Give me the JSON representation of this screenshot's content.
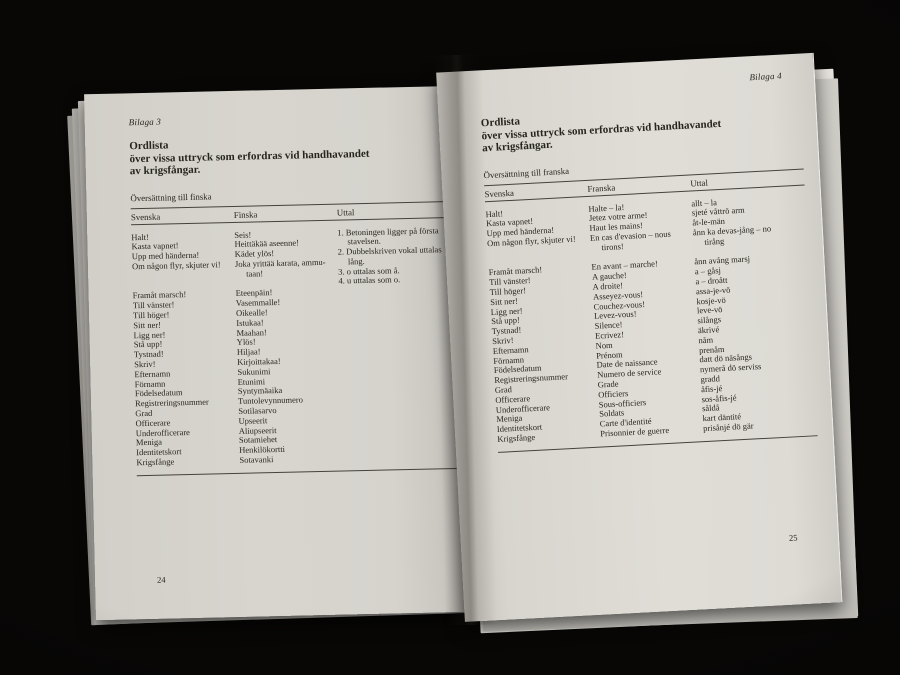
{
  "colors": {
    "background": "#080706",
    "paper": "#dedbd5",
    "ink": "#27251f"
  },
  "left_page": {
    "annex": "Bilaga 3",
    "title_line1": "Ordlista",
    "title_line2": "över vissa uttryck som erfordras vid handhavandet",
    "title_line3": "av krigsfångar.",
    "table_caption": "Översättning till finska",
    "columns": [
      "Svenska",
      "Finska",
      "Uttal"
    ],
    "rows_top": [
      {
        "sv": "Halt!",
        "fi": "Seis!"
      },
      {
        "sv": "Kasta vapnet!",
        "fi": "Heittäkää aseenne!"
      },
      {
        "sv": "Upp med händerna!",
        "fi": "Kädet ylös!"
      },
      {
        "sv": "Om någon flyr, skjuter vi!",
        "fi": "Joka yrittää karata, ammu-taan!"
      }
    ],
    "rows_main": [
      {
        "sv": "Framåt marsch!",
        "fi": "Eteenpäin!"
      },
      {
        "sv": "Till vänster!",
        "fi": "Vasemmalle!"
      },
      {
        "sv": "Till höger!",
        "fi": "Oikealle!"
      },
      {
        "sv": "Sitt ner!",
        "fi": "Istukaa!"
      },
      {
        "sv": "Ligg ner!",
        "fi": "Maahan!"
      },
      {
        "sv": "Stå upp!",
        "fi": "Ylös!"
      },
      {
        "sv": "Tystnad!",
        "fi": "Hiljaa!"
      },
      {
        "sv": "Skriv!",
        "fi": "Kirjoittakaa!"
      },
      {
        "sv": "Efternamn",
        "fi": "Sukunimi"
      },
      {
        "sv": "Förnamn",
        "fi": "Etunimi"
      },
      {
        "sv": "Födelsedatum",
        "fi": "Syntymäaika"
      },
      {
        "sv": "Registreringsnummer",
        "fi": "Tuntolevynnumero"
      },
      {
        "sv": "Grad",
        "fi": "Sotilasarvo"
      },
      {
        "sv": "Officerare",
        "fi": "Upseerit"
      },
      {
        "sv": "Underofficerare",
        "fi": "Aliupseerit"
      },
      {
        "sv": "Meniga",
        "fi": "Sotamiehet"
      },
      {
        "sv": "Identitetskort",
        "fi": "Henkilökortti"
      },
      {
        "sv": "Krigsfånge",
        "fi": "Sotavanki"
      }
    ],
    "uttal_notes": [
      "1. Betoningen ligger på första stavelsen.",
      "2. Dubbelskriven vokal uttalas lång.",
      "3. o uttalas som å.",
      "4. u uttalas som o."
    ],
    "page_number": "24"
  },
  "right_page": {
    "annex": "Bilaga 4",
    "title_line1": "Ordlista",
    "title_line2": "över vissa uttryck som erfordras vid handhavandet",
    "title_line3": "av krigsfångar.",
    "table_caption": "Översättning till franska",
    "columns": [
      "Svenska",
      "Franska",
      "Uttal"
    ],
    "rows_top": [
      {
        "sv": "Halt!",
        "fr": "Halte – la!",
        "ut": "allt – la"
      },
      {
        "sv": "Kasta vapnet!",
        "fr": "Jetez votre arme!",
        "ut": "sjeté våttrö arm"
      },
      {
        "sv": "Upp med händerna!",
        "fr": "Haut les mains!",
        "ut": "åt-le-män"
      },
      {
        "sv": "Om någon flyr, skjuter vi!",
        "fr": "En cas d'evasion – nous tirons!",
        "ut": "ånn ka devas-jång – no tirång"
      }
    ],
    "rows_main": [
      {
        "sv": "Framåt marsch!",
        "fr": "En avant – marche!",
        "ut": "ånn avång marsj"
      },
      {
        "sv": "Till vänster!",
        "fr": "A gauche!",
        "ut": "a – gåsj"
      },
      {
        "sv": "Till höger!",
        "fr": "A droite!",
        "ut": "a – droått"
      },
      {
        "sv": "Sitt ner!",
        "fr": "Asseyez-vous!",
        "ut": "assa-je-vö"
      },
      {
        "sv": "Ligg ner!",
        "fr": "Couchez-vous!",
        "ut": "kosje-vö"
      },
      {
        "sv": "Stå upp!",
        "fr": "Levez-vous!",
        "ut": "leve-vö"
      },
      {
        "sv": "Tystnad!",
        "fr": "Silence!",
        "ut": "silångs"
      },
      {
        "sv": "Skriv!",
        "fr": "Ecrivez!",
        "ut": "äkrivé"
      },
      {
        "sv": "Efternamn",
        "fr": "Nom",
        "ut": "nåm"
      },
      {
        "sv": "Förnamn",
        "fr": "Prénom",
        "ut": "prenåm"
      },
      {
        "sv": "Födelsedatum",
        "fr": "Date de naissance",
        "ut": "datt dö näsångs"
      },
      {
        "sv": "Registreringsnummer",
        "fr": "Numero de service",
        "ut": "nymerå dö serviss"
      },
      {
        "sv": "Grad",
        "fr": "Grade",
        "ut": "gradd"
      },
      {
        "sv": "Officerare",
        "fr": "Officiers",
        "ut": "åfis-jé"
      },
      {
        "sv": "Underofficerare",
        "fr": "Sous-officiers",
        "ut": "sos-åfis-jé"
      },
      {
        "sv": "Meniga",
        "fr": "Soldats",
        "ut": "såldå"
      },
      {
        "sv": "Identitetskort",
        "fr": "Carte d'identité",
        "ut": "kart däntité"
      },
      {
        "sv": "Krigsfånge",
        "fr": "Prisonnier de guerre",
        "ut": "prisånjé dö gär"
      }
    ],
    "page_number": "25"
  }
}
